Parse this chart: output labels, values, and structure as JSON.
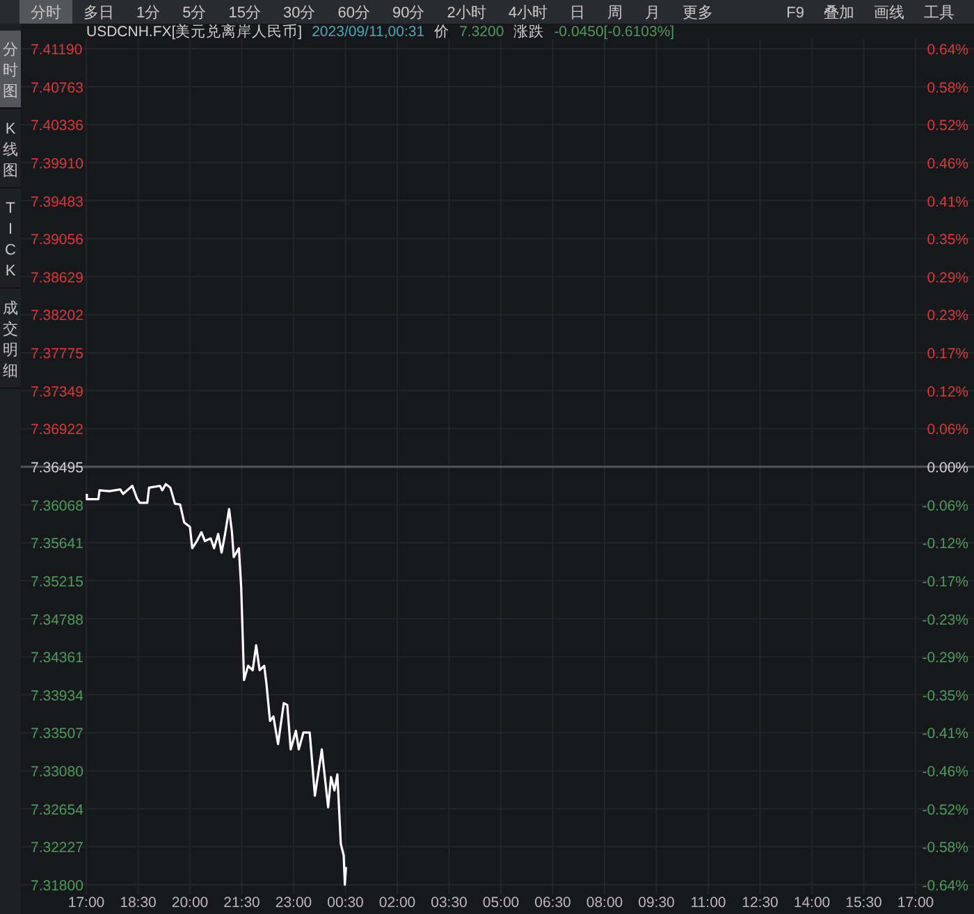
{
  "chart_data": {
    "type": "line",
    "title": "USDCNH.FX[美元兑离岸人民币]",
    "subtitle": "2023/09/11,00:31",
    "annotations": [
      "价",
      "7.3200",
      "涨跌",
      "-0.0450[-0.6103%]",
      "分时",
      "多日",
      "1分",
      "5分",
      "15分",
      "30分",
      "60分",
      "90分",
      "2小时",
      "4小时",
      "日",
      "周",
      "月",
      "更多",
      "F9",
      "叠加",
      "画线",
      "工具",
      "分时图",
      "K线图",
      "TICK",
      "成交明细"
    ],
    "series": [
      {
        "color": "#ffffff",
        "x": [
          "2023-09-10T17:01",
          "2023-09-10T17:01",
          "2023-09-10T17:21",
          "2023-09-10T17:23",
          "2023-09-10T17:40",
          "2023-09-10T17:59",
          "2023-09-10T18:04",
          "2023-09-10T18:20",
          "2023-09-10T18:28",
          "2023-09-10T18:33",
          "2023-09-10T18:46",
          "2023-09-10T18:49",
          "2023-09-10T19:08",
          "2023-09-10T19:12",
          "2023-09-10T19:18",
          "2023-09-10T19:26",
          "2023-09-10T19:34",
          "2023-09-10T19:43",
          "2023-09-10T19:50",
          "2023-09-10T20:00",
          "2023-09-10T20:04",
          "2023-09-10T20:12",
          "2023-09-10T20:20",
          "2023-09-10T20:26",
          "2023-09-10T20:36",
          "2023-09-10T20:42",
          "2023-09-10T20:49",
          "2023-09-10T20:55",
          "2023-09-10T21:01",
          "2023-09-10T21:08",
          "2023-09-10T21:13",
          "2023-09-10T21:16",
          "2023-09-10T21:25",
          "2023-09-10T21:29",
          "2023-09-10T21:34",
          "2023-09-10T21:41",
          "2023-09-10T21:49",
          "2023-09-10T21:55",
          "2023-09-10T22:01",
          "2023-09-10T22:09",
          "2023-09-10T22:13",
          "2023-09-10T22:19",
          "2023-09-10T22:25",
          "2023-09-10T22:33",
          "2023-09-10T22:43",
          "2023-09-10T22:49",
          "2023-09-10T22:55",
          "2023-09-10T23:04",
          "2023-09-10T23:09",
          "2023-09-10T23:17",
          "2023-09-10T23:28",
          "2023-09-10T23:37",
          "2023-09-10T23:49",
          "2023-09-11T00:00",
          "2023-09-11T00:05",
          "2023-09-11T00:11",
          "2023-09-11T00:16",
          "2023-09-11T00:22",
          "2023-09-11T00:27",
          "2023-09-11T00:29",
          "2023-09-11T00:31"
        ],
        "values": [
          7.3619,
          7.3613,
          7.3613,
          7.3623,
          7.3622,
          7.3624,
          7.3619,
          7.3628,
          7.3614,
          7.3609,
          7.3609,
          7.3626,
          7.3628,
          7.3623,
          7.363,
          7.3626,
          7.3608,
          7.3607,
          7.3587,
          7.3582,
          7.3558,
          7.3566,
          7.3576,
          7.3566,
          7.3569,
          7.3558,
          7.3574,
          7.3553,
          7.3574,
          7.3602,
          7.3576,
          7.3548,
          7.3558,
          7.3514,
          7.341,
          7.3426,
          7.3421,
          7.3449,
          7.3421,
          7.3426,
          7.3405,
          7.3364,
          7.3369,
          7.3338,
          7.3384,
          7.3382,
          7.3332,
          7.3353,
          7.3332,
          7.3351,
          7.3351,
          7.328,
          7.3332,
          7.3267,
          7.3301,
          7.3286,
          7.3304,
          7.3226,
          7.3213,
          7.318,
          7.32
        ]
      }
    ],
    "xlim": [
      "2023-09-10T17:00",
      "2023-09-11T17:00"
    ],
    "xticks": [
      {
        "value": "2023-09-10T17:00",
        "label": "17:00"
      },
      {
        "value": "2023-09-10T18:30",
        "label": "18:30"
      },
      {
        "value": "2023-09-10T20:00",
        "label": "20:00"
      },
      {
        "value": "2023-09-10T21:30",
        "label": "21:30"
      },
      {
        "value": "2023-09-10T23:00",
        "label": "23:00"
      },
      {
        "value": "2023-09-11T00:30",
        "label": "00:30"
      },
      {
        "value": "2023-09-11T02:00",
        "label": "02:00"
      },
      {
        "value": "2023-09-11T03:30",
        "label": "03:30"
      },
      {
        "value": "2023-09-11T05:00",
        "label": "05:00"
      },
      {
        "value": "2023-09-11T06:30",
        "label": "06:30"
      },
      {
        "value": "2023-09-11T08:00",
        "label": "08:00"
      },
      {
        "value": "2023-09-11T09:30",
        "label": "09:30"
      },
      {
        "value": "2023-09-11T11:00",
        "label": "11:00"
      },
      {
        "value": "2023-09-11T12:30",
        "label": "12:30"
      },
      {
        "value": "2023-09-11T14:00",
        "label": "14:00"
      },
      {
        "value": "2023-09-11T15:30",
        "label": "15:30"
      },
      {
        "value": "2023-09-11T17:00",
        "label": "17:00"
      }
    ],
    "ylim": [
      7.318,
      7.4119
    ],
    "yticks": [
      {
        "value": 7.4119,
        "label": "7.41190"
      },
      {
        "value": 7.40763,
        "label": "7.40763"
      },
      {
        "value": 7.40336,
        "label": "7.40336"
      },
      {
        "value": 7.3991,
        "label": "7.39910"
      },
      7.39483,
      7.39056,
      7.38629,
      7.38202,
      7.37775,
      7.37349,
      7.36922,
      7.36495,
      7.36068,
      7.35641,
      7.35215,
      7.34788,
      7.34361,
      7.33934,
      7.33507,
      {
        "value": 7.3308,
        "label": "7.33080"
      },
      7.32654,
      7.32227,
      {
        "value": 7.318,
        "label": "7.31800"
      }
    ],
    "y2lim": [
      -0.6375,
      0.6375
    ],
    "y2ticks": [
      {
        "value": 0.6375,
        "label": "0.64%"
      },
      {
        "value": 0.5795,
        "label": "0.58%"
      },
      {
        "value": 0.5216,
        "label": "0.52%"
      },
      {
        "value": 0.4636,
        "label": "0.46%"
      },
      {
        "value": 0.4057,
        "label": "0.41%"
      },
      {
        "value": 0.3477,
        "label": "0.35%"
      },
      {
        "value": 0.2898,
        "label": "0.29%"
      },
      {
        "value": 0.2318,
        "label": "0.23%"
      },
      {
        "value": 0.1739,
        "label": "0.17%"
      },
      {
        "value": 0.1159,
        "label": "0.12%"
      },
      {
        "value": 0.058,
        "label": "0.06%"
      },
      {
        "value": 0,
        "label": "0.00%"
      },
      {
        "value": -0.058,
        "label": "-0.06%"
      },
      {
        "value": -0.1159,
        "label": "-0.12%"
      },
      {
        "value": -0.1739,
        "label": "-0.17%"
      },
      {
        "value": -0.2318,
        "label": "-0.23%"
      },
      {
        "value": -0.2898,
        "label": "-0.29%"
      },
      {
        "value": -0.3477,
        "label": "-0.35%"
      },
      {
        "value": -0.4057,
        "label": "-0.41%"
      },
      {
        "value": -0.4636,
        "label": "-0.46%"
      },
      {
        "value": -0.5216,
        "label": "-0.52%"
      },
      {
        "value": -0.5795,
        "label": "-0.58%"
      },
      {
        "value": -0.6375,
        "label": "-0.64%"
      }
    ],
    "ref_lines": [
      {
        "axis": "y",
        "value": 7.36495,
        "color": "#55565a"
      }
    ],
    "grid": true,
    "line_style": "solid",
    "marker": "none"
  }
}
